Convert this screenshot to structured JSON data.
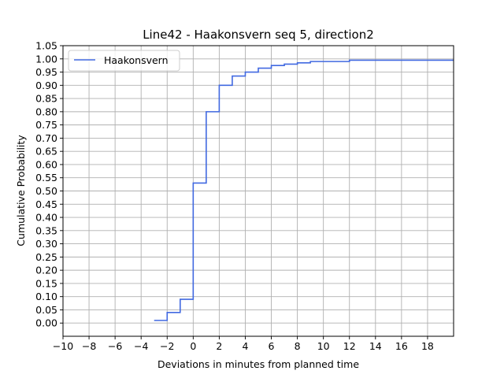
{
  "chart_data": {
    "type": "line",
    "step": "post",
    "title": "Line42 - Haakonsvern seq 5, direction2",
    "xlabel": "Deviations in minutes from planned time",
    "ylabel": "Cumulative Probability",
    "xlim": [
      -10,
      20
    ],
    "ylim": [
      -0.05,
      1.05
    ],
    "x_ticks": [
      -10,
      -8,
      -6,
      -4,
      -2,
      0,
      2,
      4,
      6,
      8,
      10,
      12,
      14,
      16,
      18
    ],
    "y_ticks": [
      0.0,
      0.05,
      0.1,
      0.15,
      0.2,
      0.25,
      0.3,
      0.35,
      0.4,
      0.45,
      0.5,
      0.55,
      0.6,
      0.65,
      0.7,
      0.75,
      0.8,
      0.85,
      0.9,
      0.95,
      1.0,
      1.05
    ],
    "grid": true,
    "legend_position": "top-left",
    "series": [
      {
        "name": "Haakonsvern",
        "color": "#4169e1",
        "x": [
          -3,
          -2,
          -1,
          0,
          1,
          2,
          3,
          4,
          5,
          6,
          7,
          8,
          9,
          12,
          20
        ],
        "y": [
          0.01,
          0.04,
          0.09,
          0.53,
          0.8,
          0.9,
          0.935,
          0.95,
          0.965,
          0.975,
          0.98,
          0.985,
          0.99,
          0.995,
          0.995
        ]
      }
    ]
  }
}
